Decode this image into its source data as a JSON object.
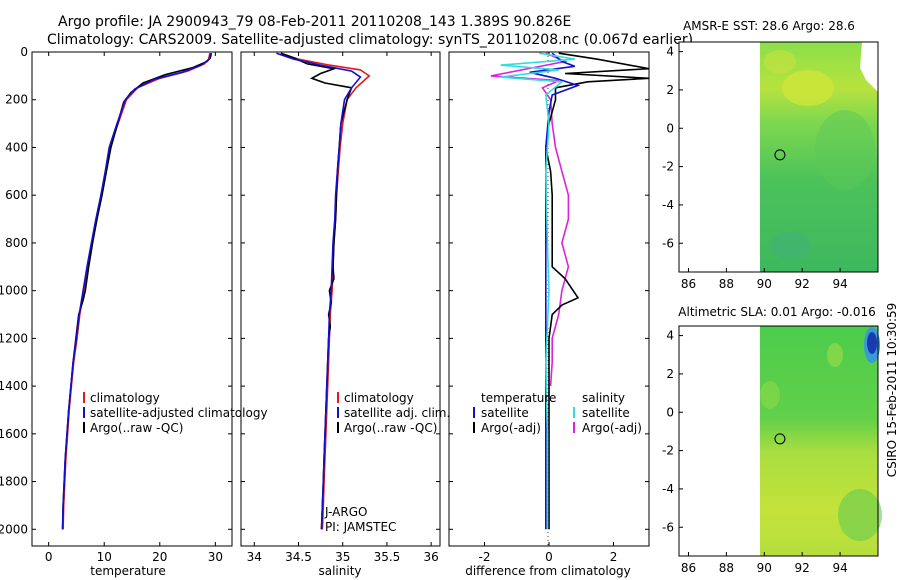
{
  "header": {
    "line1": "Argo profile: JA 2900943_79 08-Feb-2011 20110208_143 1.389S 90.826E",
    "line2": "Climatology: CARS2009. Satellite-adjusted climatology: synTS_20110208.nc (0.067d earlier)"
  },
  "credit": "CSIRO 15-Feb-2011 10:30:59",
  "colors": {
    "climatology": "#e41a1c",
    "satellite": "#1010d0",
    "argo": "#000000",
    "salinity_sat": "#33dddd",
    "salinity_argo": "#dd22dd"
  },
  "chart_data": [
    {
      "type": "line",
      "id": "temperature",
      "xlabel": "temperature",
      "xlim": [
        -3,
        33
      ],
      "ylim": [
        2070,
        0
      ],
      "xticks": [
        0,
        10,
        20,
        30
      ],
      "yticks": [
        0,
        200,
        400,
        600,
        800,
        1000,
        1200,
        1400,
        1600,
        1800,
        2000
      ],
      "legend": [
        "climatology",
        "satellite-adjusted climatology",
        "Argo(..raw -QC)"
      ],
      "legend_position": "lower-middle",
      "series": [
        {
          "name": "climatology",
          "color": "#e41a1c",
          "points": [
            [
              29,
              5
            ],
            [
              28.8,
              30
            ],
            [
              28,
              50
            ],
            [
              25,
              80
            ],
            [
              20,
              110
            ],
            [
              16,
              150
            ],
            [
              14,
              200
            ],
            [
              12.5,
              300
            ],
            [
              11,
              400
            ],
            [
              10.3,
              500
            ],
            [
              9.5,
              600
            ],
            [
              8.6,
              700
            ],
            [
              7.8,
              800
            ],
            [
              7,
              900
            ],
            [
              6.3,
              1000
            ],
            [
              5.6,
              1100
            ],
            [
              5.1,
              1200
            ],
            [
              4.5,
              1300
            ],
            [
              4.1,
              1400
            ],
            [
              3.7,
              1500
            ],
            [
              3.4,
              1600
            ],
            [
              3.1,
              1700
            ],
            [
              2.9,
              1800
            ],
            [
              2.7,
              1900
            ],
            [
              2.6,
              2000
            ]
          ]
        },
        {
          "name": "satellite-adjusted climatology",
          "color": "#1010d0",
          "points": [
            [
              29.2,
              5
            ],
            [
              28.9,
              30
            ],
            [
              27.5,
              55
            ],
            [
              24,
              85
            ],
            [
              19,
              115
            ],
            [
              15.5,
              155
            ],
            [
              13.8,
              200
            ],
            [
              12.3,
              300
            ],
            [
              10.9,
              400
            ],
            [
              10.2,
              500
            ],
            [
              9.4,
              600
            ],
            [
              8.5,
              700
            ],
            [
              7.7,
              800
            ],
            [
              6.9,
              900
            ],
            [
              6.2,
              1000
            ],
            [
              5.5,
              1100
            ],
            [
              5,
              1200
            ],
            [
              4.4,
              1300
            ],
            [
              4,
              1400
            ],
            [
              3.6,
              1500
            ],
            [
              3.3,
              1600
            ],
            [
              3,
              1700
            ],
            [
              2.8,
              1800
            ],
            [
              2.6,
              1900
            ],
            [
              2.5,
              2000
            ]
          ]
        },
        {
          "name": "Argo(..raw -QC)",
          "color": "#000000",
          "points": [
            [
              29.3,
              5
            ],
            [
              29.1,
              25
            ],
            [
              28.5,
              40
            ],
            [
              26,
              65
            ],
            [
              21,
              95
            ],
            [
              17,
              130
            ],
            [
              14.8,
              170
            ],
            [
              13.5,
              210
            ],
            [
              12.4,
              300
            ],
            [
              11.2,
              400
            ],
            [
              10.4,
              500
            ],
            [
              9.6,
              600
            ],
            [
              8.7,
              700
            ],
            [
              7.9,
              800
            ],
            [
              7.2,
              900
            ],
            [
              6.6,
              1000
            ],
            [
              6.2,
              1040
            ],
            [
              5.4,
              1100
            ],
            [
              4.9,
              1200
            ],
            [
              4.4,
              1300
            ],
            [
              4,
              1400
            ],
            [
              3.6,
              1500
            ],
            [
              3.3,
              1600
            ],
            [
              3,
              1700
            ],
            [
              2.8,
              1800
            ],
            [
              2.6,
              1900
            ],
            [
              2.5,
              2000
            ]
          ]
        }
      ]
    },
    {
      "type": "line",
      "id": "salinity",
      "xlabel": "salinity",
      "xlim": [
        33.85,
        36.1
      ],
      "ylim": [
        2070,
        0
      ],
      "xticks": [
        34,
        34.5,
        35,
        35.5,
        36
      ],
      "legend": [
        "climatology",
        "satellite adj. clim.",
        "Argo(..raw -QC)"
      ],
      "legend_position": "lower-middle",
      "annotations": [
        "J-ARGO",
        "PI: JAMSTEC"
      ],
      "series": [
        {
          "name": "climatology",
          "color": "#e41a1c",
          "points": [
            [
              34.3,
              5
            ],
            [
              34.5,
              30
            ],
            [
              34.85,
              55
            ],
            [
              35.2,
              75
            ],
            [
              35.3,
              100
            ],
            [
              35.15,
              150
            ],
            [
              35.05,
              200
            ],
            [
              35.0,
              300
            ],
            [
              34.97,
              400
            ],
            [
              34.95,
              500
            ],
            [
              34.93,
              600
            ],
            [
              34.92,
              700
            ],
            [
              34.9,
              800
            ],
            [
              34.89,
              900
            ],
            [
              34.88,
              1000
            ],
            [
              34.86,
              1100
            ],
            [
              34.85,
              1200
            ],
            [
              34.84,
              1300
            ],
            [
              34.83,
              1400
            ],
            [
              34.82,
              1500
            ],
            [
              34.81,
              1600
            ],
            [
              34.8,
              1700
            ],
            [
              34.79,
              1800
            ],
            [
              34.78,
              1900
            ],
            [
              34.77,
              2000
            ]
          ]
        },
        {
          "name": "satellite adj. clim.",
          "color": "#1010d0",
          "points": [
            [
              34.25,
              5
            ],
            [
              34.45,
              30
            ],
            [
              34.75,
              55
            ],
            [
              35.1,
              80
            ],
            [
              35.2,
              105
            ],
            [
              35.1,
              150
            ],
            [
              35.02,
              200
            ],
            [
              34.98,
              300
            ],
            [
              34.96,
              400
            ],
            [
              34.94,
              500
            ],
            [
              34.92,
              600
            ],
            [
              34.91,
              700
            ],
            [
              34.89,
              800
            ],
            [
              34.88,
              900
            ],
            [
              34.87,
              1000
            ],
            [
              34.85,
              1100
            ],
            [
              34.84,
              1200
            ],
            [
              34.83,
              1300
            ],
            [
              34.82,
              1400
            ],
            [
              34.81,
              1500
            ],
            [
              34.8,
              1600
            ],
            [
              34.79,
              1700
            ],
            [
              34.78,
              1800
            ],
            [
              34.77,
              1900
            ],
            [
              34.76,
              2000
            ]
          ]
        },
        {
          "name": "Argo(..raw -QC)",
          "color": "#000000",
          "points": [
            [
              34.3,
              5
            ],
            [
              34.45,
              25
            ],
            [
              34.6,
              50
            ],
            [
              34.9,
              70
            ],
            [
              34.75,
              90
            ],
            [
              34.65,
              110
            ],
            [
              34.8,
              130
            ],
            [
              35.1,
              150
            ],
            [
              35.05,
              200
            ],
            [
              34.98,
              300
            ],
            [
              34.96,
              400
            ],
            [
              34.94,
              500
            ],
            [
              34.93,
              600
            ],
            [
              34.92,
              700
            ],
            [
              34.9,
              800
            ],
            [
              34.89,
              900
            ],
            [
              34.9,
              950
            ],
            [
              34.85,
              1000
            ],
            [
              34.87,
              1050
            ],
            [
              34.84,
              1100
            ],
            [
              34.86,
              1150
            ],
            [
              34.84,
              1200
            ],
            [
              34.83,
              1300
            ],
            [
              34.82,
              1400
            ],
            [
              34.81,
              1500
            ],
            [
              34.8,
              1600
            ],
            [
              34.79,
              1700
            ],
            [
              34.78,
              1800
            ],
            [
              34.77,
              1900
            ],
            [
              34.76,
              2000
            ]
          ]
        }
      ]
    },
    {
      "type": "line",
      "id": "difference",
      "xlabel": "difference from climatology",
      "xlim": [
        -3.1,
        3.1
      ],
      "ylim": [
        2070,
        0
      ],
      "xticks": [
        -2,
        0,
        2
      ],
      "legend_headers": [
        "temperature",
        "salinity"
      ],
      "legend_temperature": [
        "satellite",
        "Argo(-adj)"
      ],
      "legend_salinity": [
        "satellite",
        "Argo(-adj)"
      ],
      "legend_position": "lower-middle",
      "series": [
        {
          "name": "temperature satellite",
          "color": "#1010d0",
          "points": [
            [
              0.1,
              5
            ],
            [
              0.4,
              40
            ],
            [
              0.8,
              60
            ],
            [
              -0.6,
              85
            ],
            [
              0.2,
              110
            ],
            [
              0.9,
              140
            ],
            [
              0.1,
              180
            ],
            [
              0,
              250
            ],
            [
              -0.1,
              400
            ],
            [
              -0.1,
              600
            ],
            [
              -0.1,
              800
            ],
            [
              -0.1,
              1000
            ],
            [
              -0.1,
              1400
            ],
            [
              -0.1,
              2000
            ]
          ]
        },
        {
          "name": "temperature Argo(-adj)",
          "color": "#000000",
          "points": [
            [
              0.3,
              5
            ],
            [
              1.5,
              30
            ],
            [
              3.1,
              70
            ],
            [
              0.5,
              90
            ],
            [
              3.1,
              110
            ],
            [
              1.2,
              125
            ],
            [
              0.2,
              150
            ],
            [
              0.2,
              200
            ],
            [
              0,
              300
            ],
            [
              -0.1,
              400
            ],
            [
              0.05,
              500
            ],
            [
              0.1,
              600
            ],
            [
              0.1,
              700
            ],
            [
              0.1,
              800
            ],
            [
              0.1,
              900
            ],
            [
              0.5,
              950
            ],
            [
              0.9,
              1030
            ],
            [
              0.4,
              1060
            ],
            [
              0.1,
              1100
            ],
            [
              0,
              1200
            ],
            [
              0,
              1400
            ],
            [
              0,
              2000
            ]
          ]
        },
        {
          "name": "salinity satellite",
          "color": "#33dddd",
          "points": [
            [
              -0.3,
              5
            ],
            [
              0.8,
              30
            ],
            [
              -1.5,
              55
            ],
            [
              0.3,
              75
            ],
            [
              -1.5,
              105
            ],
            [
              0.4,
              125
            ],
            [
              -0.1,
              180
            ],
            [
              0,
              300
            ],
            [
              -0.1,
              500
            ],
            [
              -0.05,
              800
            ],
            [
              0,
              1000
            ],
            [
              -0.1,
              1300
            ],
            [
              -0.05,
              1600
            ],
            [
              -0.05,
              2000
            ]
          ]
        },
        {
          "name": "salinity Argo(-adj)",
          "color": "#dd22dd",
          "points": [
            [
              -0.1,
              5
            ],
            [
              0.5,
              40
            ],
            [
              -1.8,
              100
            ],
            [
              0.3,
              120
            ],
            [
              -0.2,
              150
            ],
            [
              0.05,
              200
            ],
            [
              0.1,
              300
            ],
            [
              0.2,
              400
            ],
            [
              0.4,
              500
            ],
            [
              0.6,
              600
            ],
            [
              0.6,
              700
            ],
            [
              0.4,
              800
            ],
            [
              0.6,
              900
            ],
            [
              0.4,
              1000
            ],
            [
              0.3,
              1100
            ],
            [
              0.1,
              1200
            ],
            [
              0.1,
              1300
            ],
            [
              0.05,
              1400
            ]
          ]
        }
      ]
    },
    {
      "type": "heatmap",
      "id": "sst_map",
      "title": "AMSR-E SST: 28.6 Argo: 28.6",
      "xlim": [
        85.5,
        96
      ],
      "ylim": [
        -7.5,
        4.5
      ],
      "xticks": [
        86,
        88,
        90,
        92,
        94
      ],
      "yticks": [
        4,
        2,
        0,
        -2,
        -4,
        -6
      ],
      "data_extent_lon": [
        90,
        96
      ],
      "marker": {
        "lon": 90.826,
        "lat": -1.389
      }
    },
    {
      "type": "heatmap",
      "id": "sla_map",
      "title": "Altimetric SLA: 0.01 Argo: -0.016",
      "xlim": [
        85.5,
        96
      ],
      "ylim": [
        -7.5,
        4.5
      ],
      "xticks": [
        86,
        88,
        90,
        92,
        94
      ],
      "yticks": [
        4,
        2,
        0,
        -2,
        -4,
        -6
      ],
      "data_extent_lon": [
        90,
        96
      ],
      "marker": {
        "lon": 90.826,
        "lat": -1.389
      }
    }
  ]
}
